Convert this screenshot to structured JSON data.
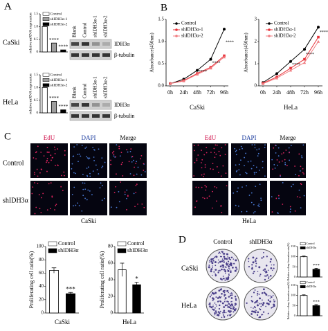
{
  "panel_labels": [
    "A",
    "B",
    "C",
    "D"
  ],
  "blots": [
    {
      "lanes": [
        "Blank",
        "Control",
        "shIDH3α-1",
        "shIDH3α-2"
      ],
      "proteins": [
        "IDH3α",
        "β-tubulin"
      ]
    },
    {
      "lanes": [
        "Blank",
        "Control",
        "shIDH3α-1",
        "shIDH3α-2"
      ],
      "proteins": [
        "IDH3α",
        "β-tubulin"
      ]
    }
  ],
  "edu_panels": [
    {
      "cell_line": "CaSki",
      "channels": [
        "EdU",
        "DAPI",
        "Merge"
      ],
      "rows": [
        "Control",
        "shIDH3α"
      ]
    },
    {
      "cell_line": "HeLa",
      "channels": [
        "EdU",
        "DAPI",
        "Merge"
      ]
    }
  ],
  "colony": {
    "columns": [
      "Control",
      "shIDH3α"
    ],
    "rows": [
      "CaSki",
      "HeLa"
    ]
  },
  "chart_data": [
    {
      "type": "bar",
      "label": "CaSki",
      "ylabel": "relative mRNA expression",
      "ylim": [
        0,
        1.5
      ],
      "yticks": [
        0,
        0.5,
        {
          "value": 1,
          "label": "1.0"
        },
        1.5
      ],
      "series": [
        {
          "name": "Control",
          "color": "#ffffff",
          "values": [
            1
          ]
        },
        {
          "name": "shIDH3α-1",
          "color": "#9e9e9e",
          "values": [
            0.35
          ]
        },
        {
          "name": "shIDH3α-2",
          "color": "#000000",
          "values": [
            0.08
          ]
        }
      ],
      "annotations": [
        "****",
        "****"
      ]
    },
    {
      "type": "bar",
      "label": "HeLa",
      "ylabel": "relative mRNA expression",
      "ylim": [
        0,
        1.5
      ],
      "yticks": [
        0,
        0.5,
        {
          "value": 1,
          "label": "1.0"
        },
        1.5
      ],
      "series": [
        {
          "name": "Control",
          "color": "#ffffff",
          "values": [
            1
          ]
        },
        {
          "name": "shIDH3α-1",
          "color": "#9e9e9e",
          "values": [
            0.45
          ]
        },
        {
          "name": "shIDH3α-2",
          "color": "#000000",
          "values": [
            0.12
          ]
        }
      ],
      "annotations": [
        "****",
        "****"
      ]
    },
    {
      "type": "line",
      "xlabel": "CaSki",
      "ylabel": "Absorbance(450nm)",
      "categories": [
        "0h",
        "24h",
        "48h",
        "72h",
        "96h"
      ],
      "ylim": [
        0,
        1.5
      ],
      "yticks": [
        {
          "value": 0,
          "label": "0.0"
        },
        0.5,
        {
          "value": 1,
          "label": "1.0"
        },
        1.5
      ],
      "series": [
        {
          "name": "Control",
          "color": "#000000",
          "marker": "circle",
          "values": [
            0.05,
            0.15,
            0.35,
            0.6,
            1.28
          ]
        },
        {
          "name": "shIDH3α-1",
          "color": "#e8333a",
          "marker": "square",
          "values": [
            0.05,
            0.12,
            0.28,
            0.42,
            0.68
          ]
        },
        {
          "name": "shIDH3α-2",
          "color": "#f07c80",
          "marker": "triangle",
          "values": [
            0.05,
            0.11,
            0.26,
            0.4,
            0.65
          ]
        }
      ],
      "annotations": [
        "****",
        "****",
        "****"
      ]
    },
    {
      "type": "line",
      "xlabel": "HeLa",
      "ylabel": "Absorbance(450nm)",
      "categories": [
        "0h",
        "24h",
        "48h",
        "72h",
        "96h"
      ],
      "ylim": [
        0,
        3
      ],
      "yticks": [
        0,
        1,
        2,
        3
      ],
      "series": [
        {
          "name": "Control",
          "color": "#000000",
          "marker": "circle",
          "values": [
            0.15,
            0.55,
            1.1,
            1.65,
            2.65
          ]
        },
        {
          "name": "shIDH3α-1",
          "color": "#e8333a",
          "marker": "square",
          "values": [
            0.12,
            0.4,
            0.8,
            1.2,
            2.2
          ]
        },
        {
          "name": "shIDH3α-2",
          "color": "#f07c80",
          "marker": "triangle",
          "values": [
            0.1,
            0.35,
            0.7,
            1.05,
            2.0
          ]
        }
      ],
      "annotations": [
        "****",
        "****",
        "****"
      ]
    },
    {
      "type": "bar",
      "xlabel": "CaSki",
      "ylabel": "Proliferating cell ratio(%)",
      "ylim": [
        0,
        100
      ],
      "yticks": [
        0,
        20,
        40,
        60,
        80,
        100
      ],
      "series": [
        {
          "name": "Control",
          "color": "#ffffff",
          "values": [
            64
          ],
          "errors": [
            4
          ]
        },
        {
          "name": "shIDH3α",
          "color": "#000000",
          "values": [
            29
          ],
          "errors": [
            2
          ]
        }
      ],
      "annotations": [
        "***"
      ]
    },
    {
      "type": "bar",
      "xlabel": "HeLa",
      "ylabel": "Proliferating cell ratio(%)",
      "ylim": [
        0,
        80
      ],
      "yticks": [
        0,
        20,
        40,
        60,
        80
      ],
      "series": [
        {
          "name": "Control",
          "color": "#ffffff",
          "values": [
            52
          ],
          "errors": [
            8
          ]
        },
        {
          "name": "shIDH3α",
          "color": "#000000",
          "values": [
            34
          ],
          "errors": [
            3
          ]
        }
      ],
      "annotations": [
        "*"
      ]
    },
    {
      "type": "bar",
      "ylabel": "Relative colony formation rate(%)",
      "ylim": [
        0,
        150
      ],
      "yticks": [
        0,
        50,
        100,
        150
      ],
      "series": [
        {
          "name": "Control",
          "color": "#ffffff",
          "values": [
            100
          ],
          "errors": [
            3
          ]
        },
        {
          "name": "shIDH3α",
          "color": "#000000",
          "values": [
            38
          ],
          "errors": [
            5
          ]
        }
      ],
      "annotations": [
        "***"
      ]
    },
    {
      "type": "bar",
      "ylabel": "Relative colony formation rate(%)",
      "ylim": [
        0,
        150
      ],
      "yticks": [
        0,
        50,
        100,
        150
      ],
      "series": [
        {
          "name": "Control",
          "color": "#ffffff",
          "values": [
            100
          ],
          "errors": [
            3
          ]
        },
        {
          "name": "shIDH3α",
          "color": "#000000",
          "values": [
            50
          ],
          "errors": [
            5
          ]
        }
      ],
      "annotations": [
        "***"
      ]
    }
  ]
}
